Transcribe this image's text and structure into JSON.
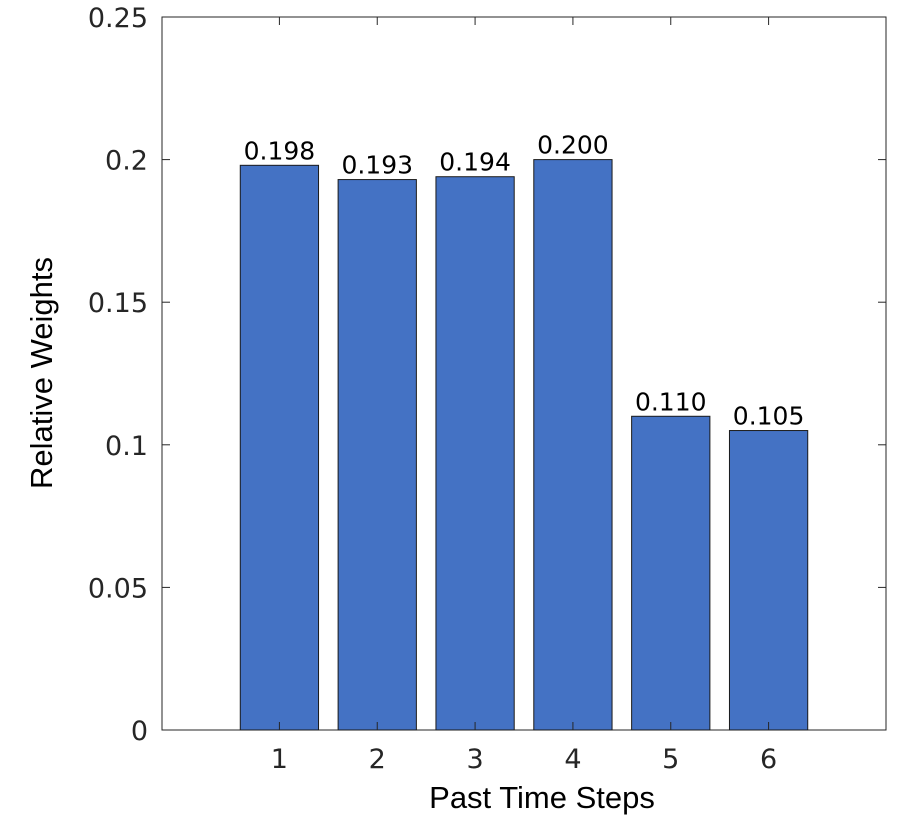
{
  "chart_data": {
    "type": "bar",
    "x": [
      1,
      2,
      3,
      4,
      5,
      6
    ],
    "values": [
      0.198,
      0.193,
      0.194,
      0.2,
      0.11,
      0.105
    ],
    "value_labels": [
      "0.198",
      "0.193",
      "0.194",
      "0.200",
      "0.110",
      "0.105"
    ],
    "color": "#4472c4",
    "xlabel": "Past Time Steps",
    "ylabel": "Relative Weights",
    "xlim": [
      -0.2,
      7.2
    ],
    "xticks": [
      1,
      2,
      3,
      4,
      5,
      6
    ],
    "ylim": [
      0,
      0.25
    ],
    "yticks": [
      0,
      0.05,
      0.1,
      0.15,
      0.2,
      0.25
    ],
    "grid": false
  }
}
